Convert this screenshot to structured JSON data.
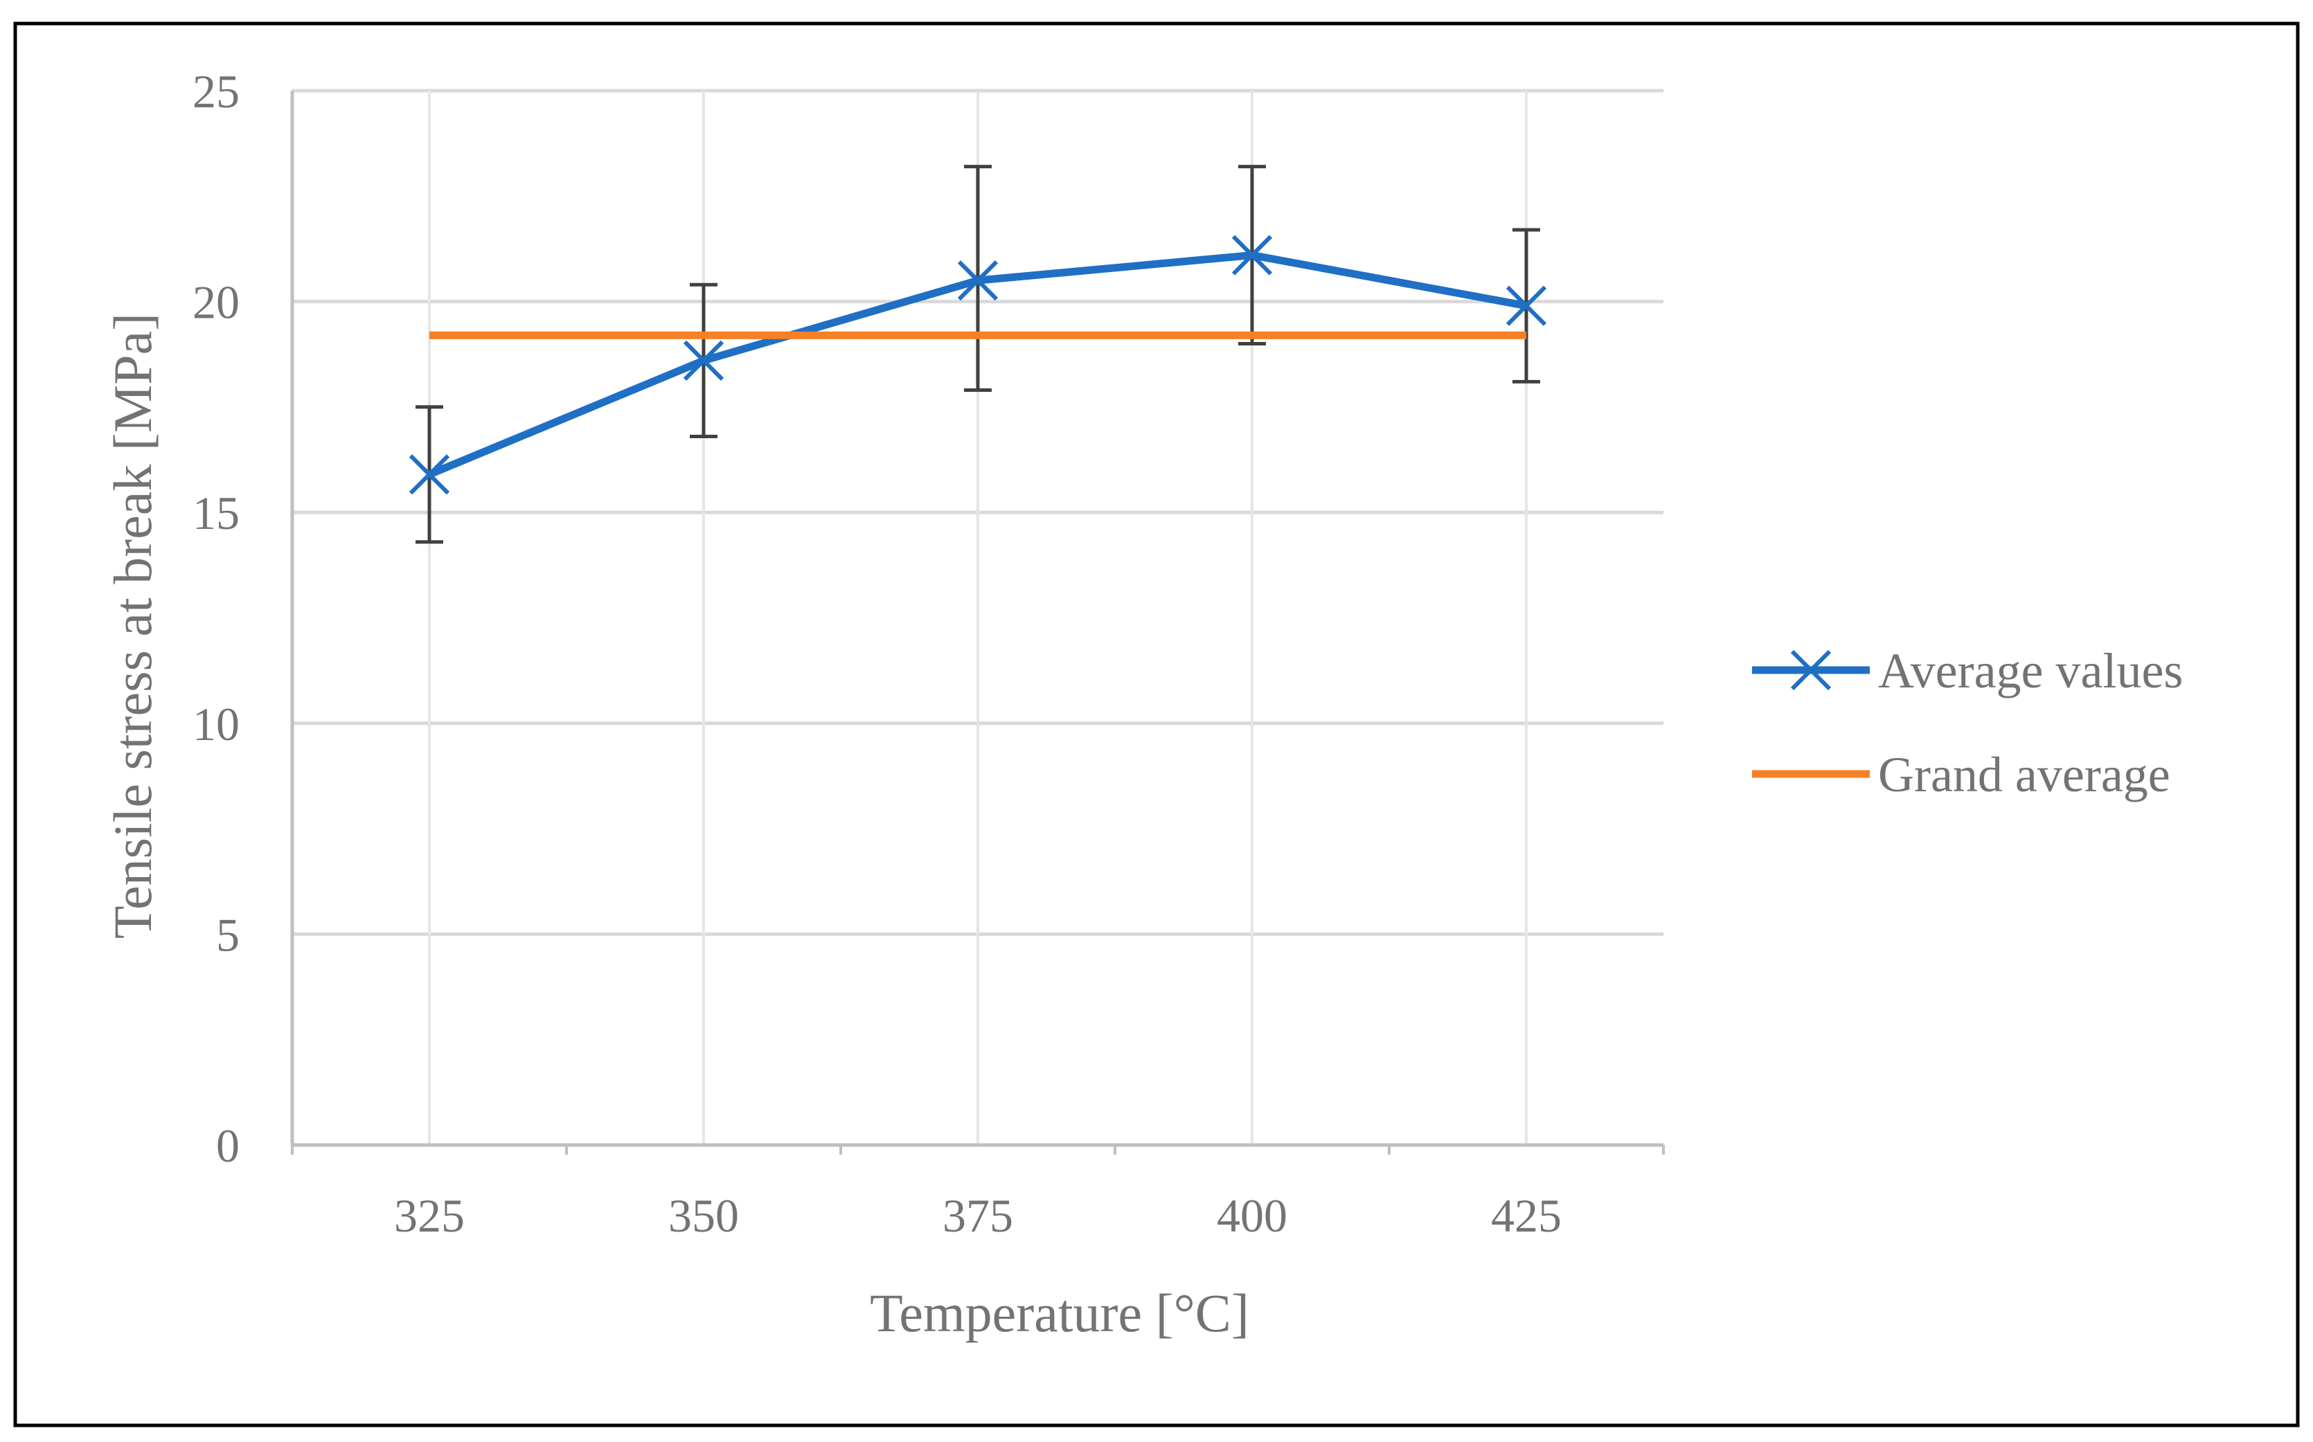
{
  "chart_data": {
    "type": "line",
    "title": "",
    "xlabel": "Temperature [°C]",
    "ylabel": "Tensile stress at break [MPa]",
    "categories": [
      "325",
      "350",
      "375",
      "400",
      "425"
    ],
    "ylim": [
      0,
      25
    ],
    "yticks": [
      0,
      5,
      10,
      15,
      20,
      25
    ],
    "grid": true,
    "legend_position": "right",
    "series": [
      {
        "name": "Average values",
        "color": "#1F6FC5",
        "marker": "x",
        "values": [
          15.9,
          18.6,
          20.5,
          21.1,
          19.9
        ],
        "error_upper": [
          17.5,
          20.4,
          23.2,
          23.2,
          21.7
        ],
        "error_lower": [
          14.3,
          16.8,
          17.9,
          19.0,
          18.1
        ]
      },
      {
        "name": "Grand average",
        "color": "#F58025",
        "marker": "none",
        "values": [
          19.2,
          19.2,
          19.2,
          19.2,
          19.2
        ]
      }
    ]
  },
  "colors": {
    "frame": "#000000",
    "axis": "#BFBFBF",
    "grid": "#D9D9D9",
    "error_bar": "#404040",
    "text": "#737373"
  }
}
